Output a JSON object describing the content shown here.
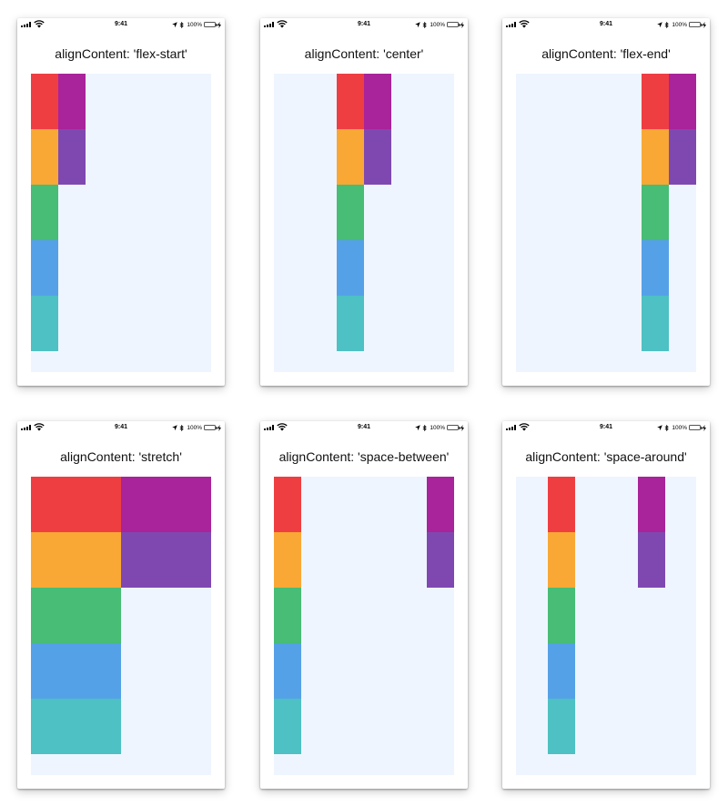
{
  "status_bar": {
    "time": "9:41",
    "battery_percent": "100%",
    "battery_level": 1.0,
    "icons": [
      "signal-icon",
      "wifi-icon",
      "location-arrow-icon",
      "bluetooth-icon",
      "battery-icon",
      "charging-icon"
    ]
  },
  "box_colors": [
    "#ef3e42",
    "#f9a836",
    "#47bd76",
    "#55a1e7",
    "#4dc1c4",
    "#a9239a",
    "#7f48b1"
  ],
  "container_color": "#eff5fe",
  "battery_color": "#4cd964",
  "phones": [
    {
      "title": "alignContent: 'flex-start'",
      "mode": "flex-start"
    },
    {
      "title": "alignContent: 'center'",
      "mode": "center"
    },
    {
      "title": "alignContent: 'flex-end'",
      "mode": "flex-end"
    },
    {
      "title": "alignContent: 'stretch'",
      "mode": "stretch"
    },
    {
      "title": "alignContent: 'space-between'",
      "mode": "space-between"
    },
    {
      "title": "alignContent: 'space-around'",
      "mode": "space-around"
    }
  ]
}
